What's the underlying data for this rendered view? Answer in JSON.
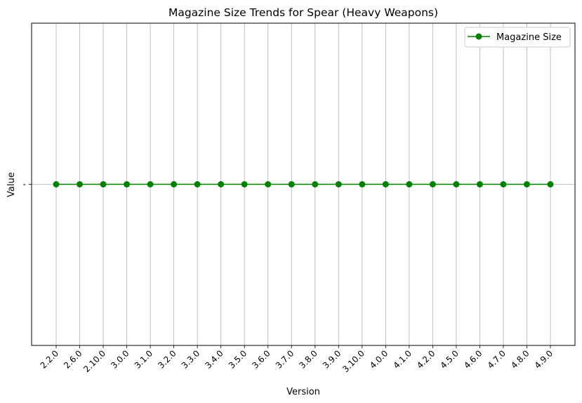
{
  "chart_data": {
    "type": "line",
    "title": "Magazine Size Trends for Spear (Heavy Weapons)",
    "xlabel": "Version",
    "ylabel": "Value",
    "categories": [
      "2.2.0",
      "2.6.0",
      "2.10.0",
      "3.0.0",
      "3.1.0",
      "3.2.0",
      "3.3.0",
      "3.4.0",
      "3.5.0",
      "3.6.0",
      "3.7.0",
      "3.8.0",
      "3.9.0",
      "3.10.0",
      "4.0.0",
      "4.1.0",
      "4.2.0",
      "4.5.0",
      "4.6.0",
      "4.7.0",
      "4.8.0",
      "4.9.0"
    ],
    "y_categories": [
      "-"
    ],
    "series": [
      {
        "name": "Magazine Size",
        "color": "#008000",
        "values": [
          "-",
          "-",
          "-",
          "-",
          "-",
          "-",
          "-",
          "-",
          "-",
          "-",
          "-",
          "-",
          "-",
          "-",
          "-",
          "-",
          "-",
          "-",
          "-",
          "-",
          "-",
          "-"
        ]
      }
    ],
    "grid": true,
    "legend": "top-right"
  }
}
